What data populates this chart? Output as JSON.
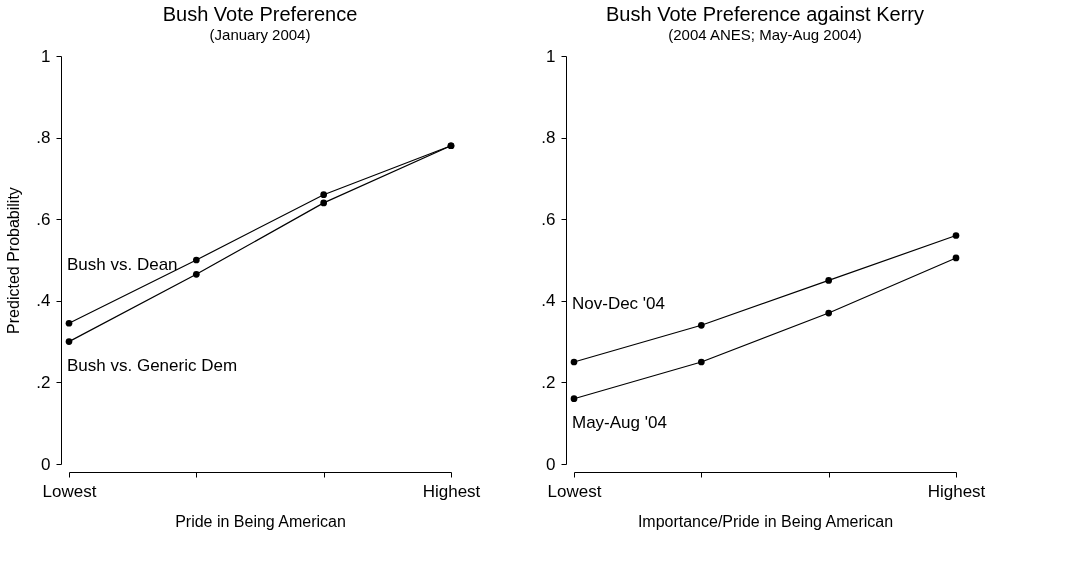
{
  "chart_data": [
    {
      "type": "line",
      "title": "Bush Vote Preference",
      "subtitle": "(January 2004)",
      "xlabel": "Pride in Being American",
      "ylabel": "Predicted Probability",
      "categories": [
        "Lowest",
        null,
        null,
        "Highest"
      ],
      "ylim": [
        0,
        1
      ],
      "yticks": [
        0,
        {
          "value": 0.2,
          "label": ".2"
        },
        {
          "value": 0.4,
          "label": ".4"
        },
        {
          "value": 0.6,
          "label": ".6"
        },
        {
          "value": 0.8,
          "label": ".8"
        },
        1
      ],
      "marker": "circle",
      "grid": false,
      "series": [
        {
          "name": "Bush vs. Dean",
          "color": "#000000",
          "values": [
            0.345,
            0.5,
            0.66,
            0.78
          ]
        },
        {
          "name": "Bush vs. Generic Dem",
          "color": "#000000",
          "values": [
            0.3,
            0.465,
            0.64,
            0.78
          ]
        }
      ]
    },
    {
      "type": "line",
      "title": "Bush Vote Preference against Kerry",
      "subtitle": "(2004 ANES; May-Aug 2004)",
      "xlabel": "Importance/Pride in Being American",
      "categories": [
        "Lowest",
        null,
        null,
        "Highest"
      ],
      "ylim": [
        0,
        1
      ],
      "yticks": [
        0,
        {
          "value": 0.2,
          "label": ".2"
        },
        {
          "value": 0.4,
          "label": ".4"
        },
        {
          "value": 0.6,
          "label": ".6"
        },
        {
          "value": 0.8,
          "label": ".8"
        },
        1
      ],
      "marker": "circle",
      "grid": false,
      "series": [
        {
          "name": "Nov-Dec '04",
          "color": "#000000",
          "values": [
            0.25,
            0.34,
            0.45,
            0.56
          ]
        },
        {
          "name": "May-Aug '04",
          "color": "#000000",
          "values": [
            0.16,
            0.25,
            0.37,
            0.505
          ]
        }
      ]
    }
  ]
}
